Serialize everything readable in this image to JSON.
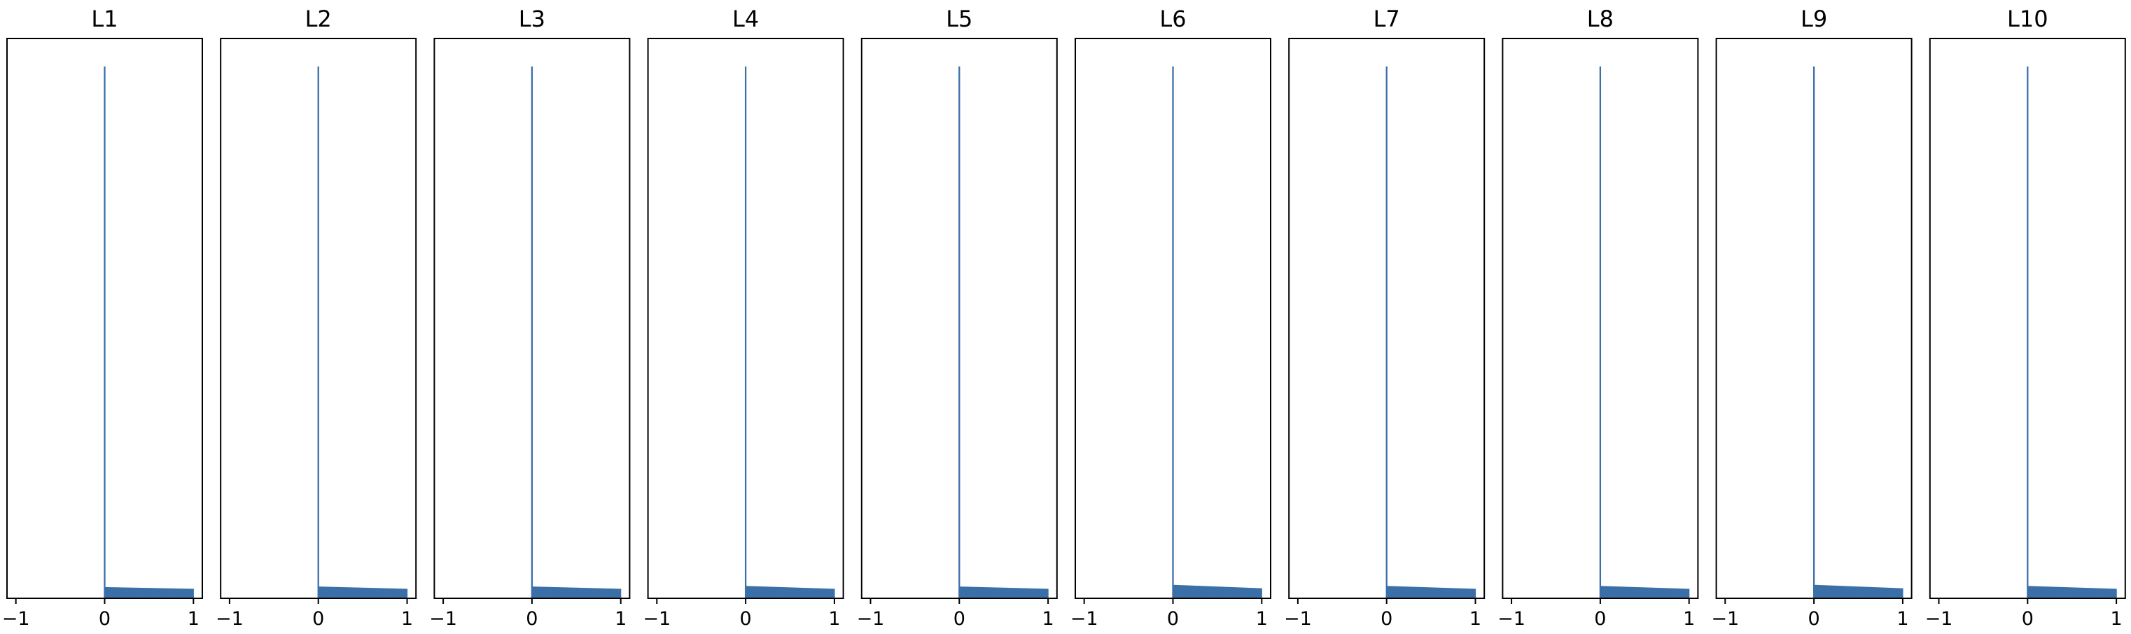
{
  "chart_data": {
    "type": "bar",
    "bar_color": "#3a6fa8",
    "axis_color": "#000000",
    "xlim": [
      -1.1,
      1.1
    ],
    "ylim": [
      0,
      1
    ],
    "xticks": [
      -1,
      0,
      1
    ],
    "xtick_labels": [
      "−1",
      "0",
      "1"
    ],
    "grid": false,
    "legend": "none",
    "panels": [
      {
        "title": "L1",
        "spike_height": 0.95,
        "tail_start_height": 0.02,
        "tail_end_height": 0.017
      },
      {
        "title": "L2",
        "spike_height": 0.95,
        "tail_start_height": 0.021,
        "tail_end_height": 0.017
      },
      {
        "title": "L3",
        "spike_height": 0.95,
        "tail_start_height": 0.021,
        "tail_end_height": 0.017
      },
      {
        "title": "L4",
        "spike_height": 0.95,
        "tail_start_height": 0.022,
        "tail_end_height": 0.017
      },
      {
        "title": "L5",
        "spike_height": 0.95,
        "tail_start_height": 0.021,
        "tail_end_height": 0.017
      },
      {
        "title": "L6",
        "spike_height": 0.95,
        "tail_start_height": 0.024,
        "tail_end_height": 0.018
      },
      {
        "title": "L7",
        "spike_height": 0.95,
        "tail_start_height": 0.022,
        "tail_end_height": 0.017
      },
      {
        "title": "L8",
        "spike_height": 0.95,
        "tail_start_height": 0.022,
        "tail_end_height": 0.017
      },
      {
        "title": "L9",
        "spike_height": 0.95,
        "tail_start_height": 0.024,
        "tail_end_height": 0.018
      },
      {
        "title": "L10",
        "spike_height": 0.95,
        "tail_start_height": 0.022,
        "tail_end_height": 0.017
      }
    ]
  }
}
